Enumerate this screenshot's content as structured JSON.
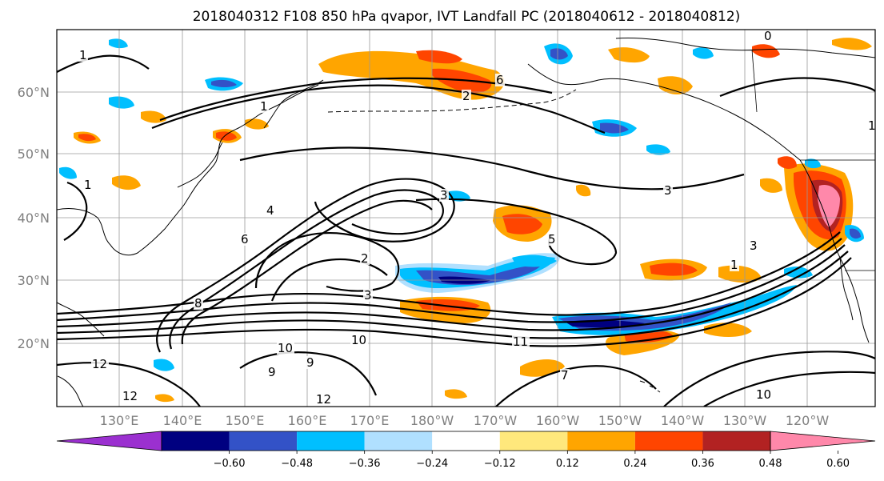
{
  "figure": {
    "title": "2018040312 F108 850 hPa qvapor, IVT Landfall PC (2018040612 - 2018040812)"
  },
  "axes": {
    "lat_labels": [
      "60°N",
      "50°N",
      "40°N",
      "30°N",
      "20°N"
    ],
    "lon_labels": [
      "130°E",
      "140°E",
      "150°E",
      "160°E",
      "170°E",
      "180°W",
      "170°W",
      "160°W",
      "150°W",
      "140°W",
      "130°W",
      "120°W"
    ]
  },
  "colorbar": {
    "tick_labels": [
      "−0.60",
      "−0.48",
      "−0.36",
      "−0.24",
      "−0.12",
      "0.12",
      "0.24",
      "0.36",
      "0.48",
      "0.60"
    ],
    "colors": [
      "#9b30d0",
      "#000080",
      "#3352c7",
      "#00bfff",
      "#b0e0ff",
      "#ffffff",
      "#ffe87c",
      "#ffa500",
      "#ff4500",
      "#b22222",
      "#ff88aa"
    ]
  },
  "contour_labels": [
    "1",
    "1",
    "1",
    "2",
    "2",
    "3",
    "3",
    "3",
    "4",
    "5",
    "6",
    "6",
    "7",
    "8",
    "9",
    "9",
    "10",
    "10",
    "10",
    "11",
    "12",
    "12",
    "12",
    "0",
    "1",
    "1",
    "3"
  ],
  "colors": {
    "positive_light": "#ffe87c",
    "positive_mid": "#ffa500",
    "positive_strong": "#ff4500",
    "positive_dark": "#b22222",
    "positive_max": "#ff88aa",
    "negative_light": "#b0e0ff",
    "negative_mid": "#00bfff",
    "negative_strong": "#3352c7",
    "negative_dark": "#000080",
    "coast": "#000000",
    "grid": "#9a9a9a"
  }
}
